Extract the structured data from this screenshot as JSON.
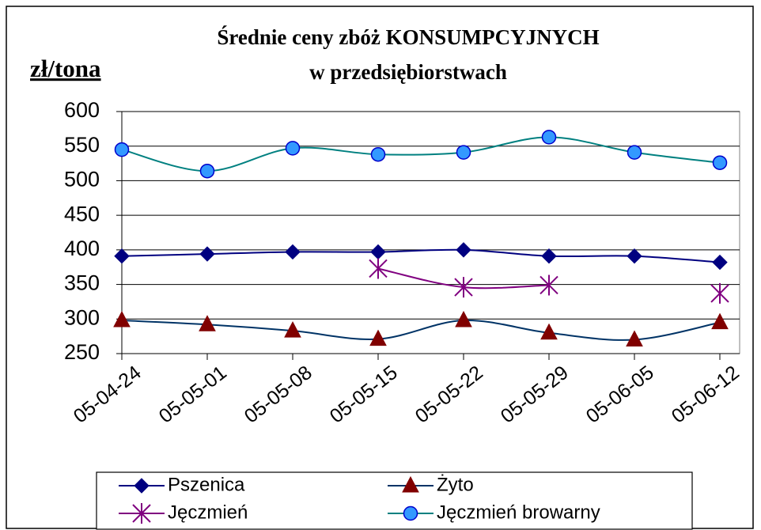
{
  "chart_data": {
    "type": "line",
    "title": [
      "Średnie ceny zbóż KONSUMPCYJNYCH",
      "w przedsiębiorstwach"
    ],
    "y_label": "zł/tona",
    "categories": [
      "05-04-24",
      "05-05-01",
      "05-05-08",
      "05-05-15",
      "05-05-22",
      "05-05-29",
      "05-06-05",
      "05-06-12"
    ],
    "series": [
      {
        "name": "Pszenica",
        "color": "#000080",
        "marker": "diamond",
        "marker_color": "#000080",
        "values": [
          391,
          394,
          397,
          397,
          400,
          391,
          391,
          382
        ]
      },
      {
        "name": "Żyto",
        "color": "#003366",
        "marker": "triangle",
        "marker_color": "#800000",
        "values": [
          298,
          292,
          283,
          271,
          298,
          280,
          270,
          295
        ]
      },
      {
        "name": "Jęczmień",
        "color": "#800080",
        "marker": "star",
        "marker_color": "#800080",
        "values": [
          null,
          null,
          null,
          373,
          346,
          349,
          null,
          337
        ]
      },
      {
        "name": "Jęczmień browarny",
        "color": "#008080",
        "marker": "circle",
        "marker_color": "#3399ff",
        "values": [
          545,
          514,
          547,
          538,
          541,
          563,
          541,
          526
        ]
      }
    ],
    "ylim": [
      250,
      600
    ],
    "yticks": [
      250,
      300,
      350,
      400,
      450,
      500,
      550,
      600
    ],
    "grid": true,
    "smooth": true,
    "legend": "bottom"
  }
}
